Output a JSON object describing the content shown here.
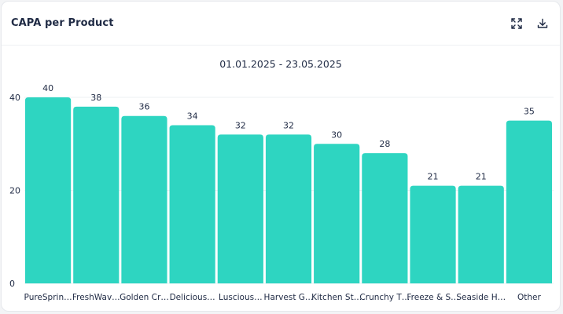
{
  "card": {
    "title": "CAPA per Product"
  },
  "icons": {
    "expand": "expand-icon",
    "download": "download-icon"
  },
  "colors": {
    "bar": "#2ed5c1",
    "grid": "#eef0f3",
    "text": "#1f2a44"
  },
  "chart_data": {
    "type": "bar",
    "title": "01.01.2025 - 23.05.2025",
    "xlabel": "",
    "ylabel": "",
    "ylim": [
      0,
      40
    ],
    "yticks": [
      "0",
      "20",
      "40"
    ],
    "grid": true,
    "categories": [
      "PureSprin…",
      "FreshWav…",
      "Golden Cr…",
      "Delicious…",
      "Luscious…",
      "Harvest G…",
      "Kitchen St…",
      "Crunchy T…",
      "Freeze & S…",
      "Seaside H…",
      "Other"
    ],
    "values": [
      40,
      38,
      36,
      34,
      32,
      32,
      30,
      28,
      21,
      21,
      35
    ]
  }
}
